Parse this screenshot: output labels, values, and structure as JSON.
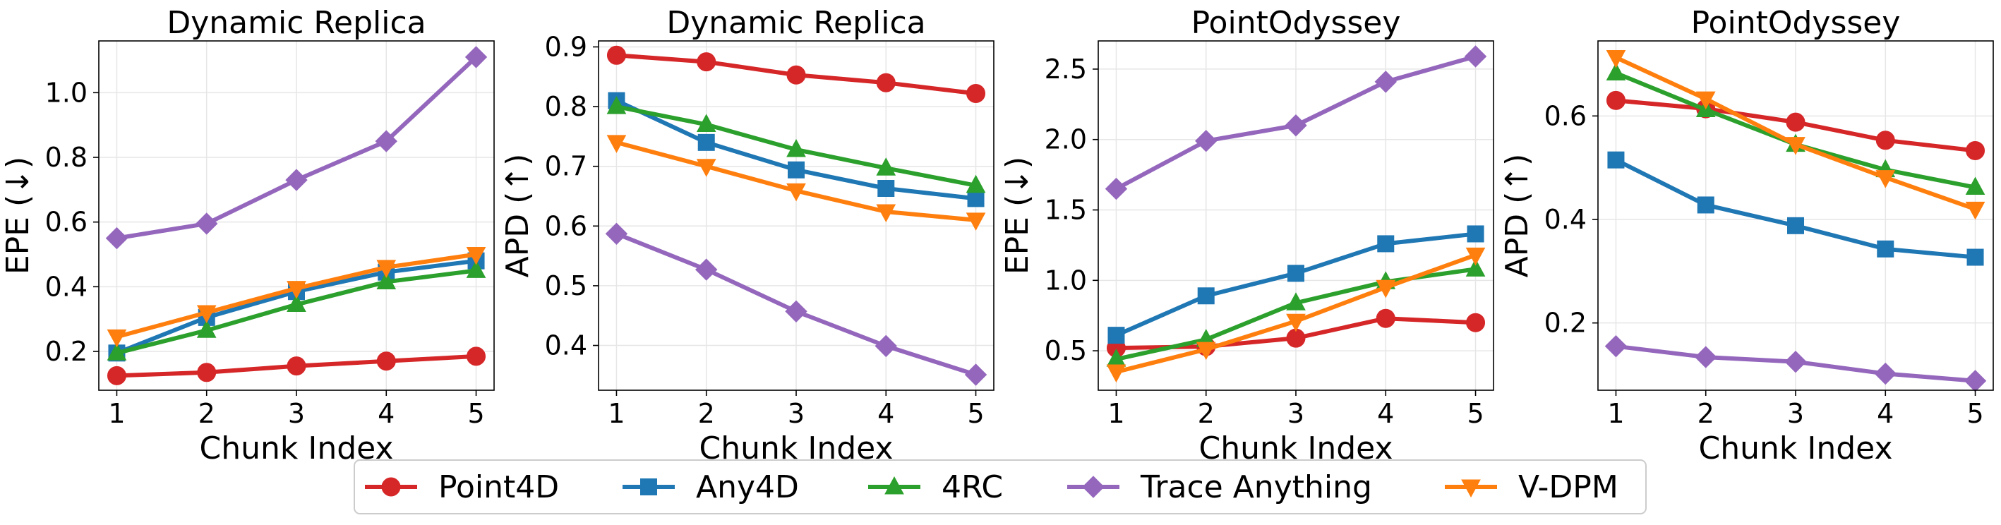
{
  "colors": {
    "Point4D": "#d62728",
    "Any4D": "#1f77b4",
    "4RC": "#2ca02c",
    "Trace Anything": "#9467bd",
    "V-DPM": "#ff7f0e"
  },
  "markers": {
    "Point4D": "circle",
    "Any4D": "square",
    "4RC": "triangle-up",
    "Trace Anything": "diamond",
    "V-DPM": "triangle-down"
  },
  "legend": {
    "placement": "bottom-center",
    "entries": [
      "Point4D",
      "Any4D",
      "4RC",
      "Trace Anything",
      "V-DPM"
    ]
  },
  "chart_data": [
    {
      "type": "line",
      "title": "Dynamic Replica",
      "xlabel": "Chunk Index",
      "ylabel": "EPE (↓)",
      "x": [
        1,
        2,
        3,
        4,
        5
      ],
      "xticks": [
        "1",
        "2",
        "3",
        "4",
        "5"
      ],
      "ylim": [
        0.08,
        1.16
      ],
      "yticks": [
        0.2,
        0.4,
        0.6,
        0.8,
        1.0
      ],
      "yticklabels": [
        "0.2",
        "0.4",
        "0.6",
        "0.8",
        "1.0"
      ],
      "grid": true,
      "series": [
        {
          "name": "Point4D",
          "values": [
            0.125,
            0.135,
            0.155,
            0.17,
            0.185
          ]
        },
        {
          "name": "Any4D",
          "values": [
            0.195,
            0.305,
            0.385,
            0.445,
            0.48
          ]
        },
        {
          "name": "4RC",
          "values": [
            0.195,
            0.265,
            0.345,
            0.415,
            0.45
          ]
        },
        {
          "name": "Trace Anything",
          "values": [
            0.55,
            0.595,
            0.73,
            0.85,
            1.11
          ]
        },
        {
          "name": "V-DPM",
          "values": [
            0.245,
            0.32,
            0.395,
            0.46,
            0.5
          ]
        }
      ]
    },
    {
      "type": "line",
      "title": "Dynamic Replica",
      "xlabel": "Chunk Index",
      "ylabel": "APD (↑)",
      "x": [
        1,
        2,
        3,
        4,
        5
      ],
      "xticks": [
        "1",
        "2",
        "3",
        "4",
        "5"
      ],
      "ylim": [
        0.325,
        0.91
      ],
      "yticks": [
        0.4,
        0.5,
        0.6,
        0.7,
        0.8,
        0.9
      ],
      "yticklabels": [
        "0.4",
        "0.5",
        "0.6",
        "0.7",
        "0.8",
        "0.9"
      ],
      "grid": true,
      "series": [
        {
          "name": "Point4D",
          "values": [
            0.886,
            0.875,
            0.853,
            0.84,
            0.822
          ]
        },
        {
          "name": "Any4D",
          "values": [
            0.81,
            0.74,
            0.694,
            0.663,
            0.646
          ]
        },
        {
          "name": "4RC",
          "values": [
            0.8,
            0.77,
            0.728,
            0.697,
            0.668
          ]
        },
        {
          "name": "Trace Anything",
          "values": [
            0.587,
            0.527,
            0.457,
            0.399,
            0.351
          ]
        },
        {
          "name": "V-DPM",
          "values": [
            0.74,
            0.7,
            0.659,
            0.624,
            0.61
          ]
        }
      ]
    },
    {
      "type": "line",
      "title": "PointOdyssey",
      "xlabel": "Chunk Index",
      "ylabel": "EPE (↓)",
      "x": [
        1,
        2,
        3,
        4,
        5
      ],
      "xticks": [
        "1",
        "2",
        "3",
        "4",
        "5"
      ],
      "ylim": [
        0.22,
        2.7
      ],
      "yticks": [
        0.5,
        1.0,
        1.5,
        2.0,
        2.5
      ],
      "yticklabels": [
        "0.5",
        "1.0",
        "1.5",
        "2.0",
        "2.5"
      ],
      "grid": true,
      "series": [
        {
          "name": "Point4D",
          "values": [
            0.52,
            0.53,
            0.59,
            0.73,
            0.7
          ]
        },
        {
          "name": "Any4D",
          "values": [
            0.61,
            0.89,
            1.05,
            1.26,
            1.33
          ]
        },
        {
          "name": "4RC",
          "values": [
            0.44,
            0.58,
            0.84,
            0.99,
            1.08
          ]
        },
        {
          "name": "Trace Anything",
          "values": [
            1.65,
            1.99,
            2.1,
            2.41,
            2.59
          ]
        },
        {
          "name": "V-DPM",
          "values": [
            0.35,
            0.51,
            0.71,
            0.95,
            1.18
          ]
        }
      ]
    },
    {
      "type": "line",
      "title": "PointOdyssey",
      "xlabel": "Chunk Index",
      "ylabel": "APD (↑)",
      "x": [
        1,
        2,
        3,
        4,
        5
      ],
      "xticks": [
        "1",
        "2",
        "3",
        "4",
        "5"
      ],
      "ylim": [
        0.07,
        0.745
      ],
      "yticks": [
        0.2,
        0.4,
        0.6
      ],
      "yticklabels": [
        "0.2",
        "0.4",
        "0.6"
      ],
      "grid": true,
      "series": [
        {
          "name": "Point4D",
          "values": [
            0.63,
            0.614,
            0.588,
            0.553,
            0.533
          ]
        },
        {
          "name": "Any4D",
          "values": [
            0.515,
            0.428,
            0.388,
            0.343,
            0.327
          ]
        },
        {
          "name": "4RC",
          "values": [
            0.683,
            0.612,
            0.545,
            0.496,
            0.462
          ]
        },
        {
          "name": "Trace Anything",
          "values": [
            0.155,
            0.134,
            0.125,
            0.102,
            0.088
          ]
        },
        {
          "name": "V-DPM",
          "values": [
            0.713,
            0.633,
            0.545,
            0.481,
            0.42
          ]
        }
      ]
    }
  ]
}
